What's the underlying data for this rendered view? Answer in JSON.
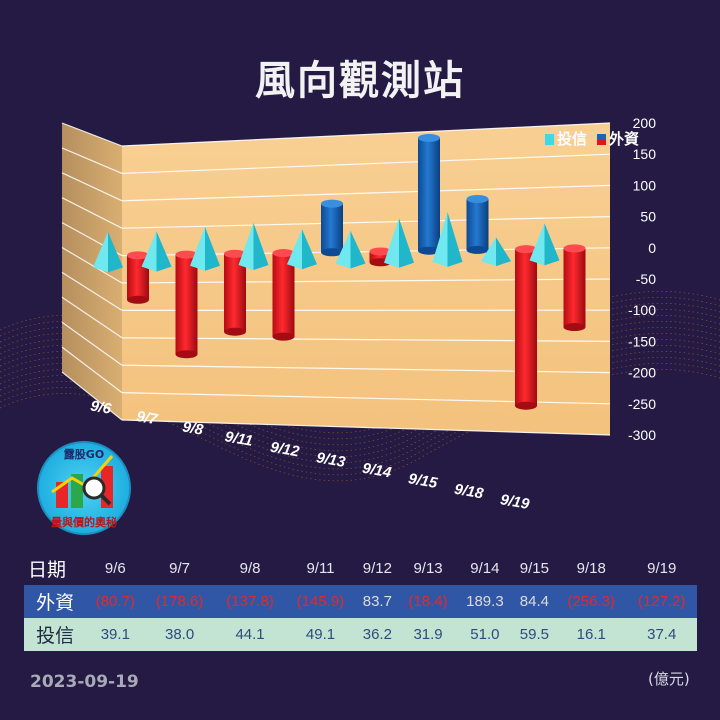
{
  "title": "風向觀測站",
  "date": "2023-09-19",
  "unit": "(億元)",
  "table": {
    "header_label": "日期",
    "foreign_label": "外資",
    "trust_label": "投信",
    "dates": [
      "9/6",
      "9/7",
      "9/8",
      "9/11",
      "9/12",
      "9/13",
      "9/14",
      "9/15",
      "9/18",
      "9/19"
    ],
    "foreign_display": [
      "(80.7)",
      "(178.6)",
      "(137.8)",
      "(145.9)",
      "83.7",
      "(18.4)",
      "189.3",
      "84.4",
      "(256.3)",
      "(127.2)"
    ],
    "trust_display": [
      "39.1",
      "38.0",
      "44.1",
      "49.1",
      "36.2",
      "31.9",
      "51.0",
      "59.5",
      "16.1",
      "37.4"
    ]
  },
  "logo": {
    "text_top": "露股GO",
    "text_bottom": "量與價的奧秘"
  },
  "colors": {
    "background": "#241a44",
    "wall": "#f6c98a",
    "foreign_positive": "#1a63b8",
    "foreign_negative": "#e3141c",
    "trust": "#3fd8e6",
    "table_foreign_row": "#2f57a5",
    "table_trust_row": "#c3e3d3"
  },
  "chart_data": {
    "type": "bar",
    "categories": [
      "9/6",
      "9/7",
      "9/8",
      "9/11",
      "9/12",
      "9/13",
      "9/14",
      "9/15",
      "9/18",
      "9/19"
    ],
    "series": [
      {
        "name": "投信",
        "values": [
          39.1,
          38.0,
          44.1,
          49.1,
          36.2,
          31.9,
          51.0,
          59.5,
          16.1,
          37.4
        ]
      },
      {
        "name": "外資",
        "values": [
          -80.7,
          -178.6,
          -137.8,
          -145.9,
          83.7,
          -18.4,
          189.3,
          84.4,
          -256.3,
          -127.2
        ]
      }
    ],
    "ylim": [
      -300,
      200
    ],
    "yticks": [
      "200",
      "150",
      "100",
      "50",
      "0",
      "-50",
      "-100",
      "-150",
      "-200",
      "-250",
      "-300"
    ],
    "grid": true,
    "legend": "top-right"
  }
}
